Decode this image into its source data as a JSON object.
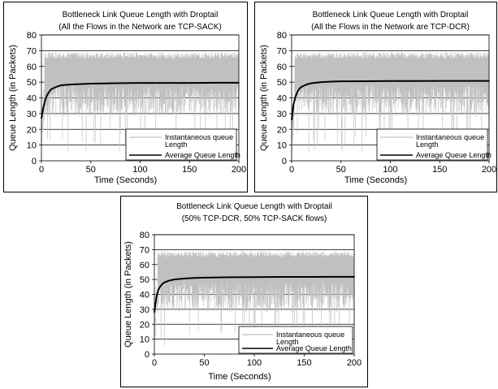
{
  "chart_data": [
    {
      "type": "line",
      "title": "Bottleneck Link Queue Length with Droptail",
      "subtitle": "(All the Flows in the Network are TCP-SACK)",
      "xlabel": "Time (Seconds)",
      "ylabel": "Queue Length (in Packets)",
      "xlim": [
        0,
        200
      ],
      "ylim": [
        0,
        80
      ],
      "xticks": [
        "0",
        "50",
        "100",
        "150",
        "200"
      ],
      "yticks": [
        "0",
        "10",
        "20",
        "30",
        "40",
        "50",
        "60",
        "70",
        "80"
      ],
      "grid": "horizontal",
      "legend_position": "bottom-right",
      "series": [
        {
          "name": "Instantaneous queue Length",
          "color": "#c0c0c0",
          "style": "dense oscillation",
          "band": [
            20,
            69
          ],
          "max": 69,
          "min": 5
        },
        {
          "name": "Average Queue Length",
          "color": "#000000",
          "x": [
            0,
            2,
            4,
            6,
            8,
            10,
            15,
            20,
            30,
            40,
            50,
            75,
            100,
            125,
            150,
            175,
            200
          ],
          "y": [
            27,
            34,
            39,
            42,
            44,
            45.5,
            47,
            48,
            48.5,
            48.8,
            49,
            49.3,
            49.5,
            49.5,
            49.5,
            49.6,
            49.6
          ]
        }
      ]
    },
    {
      "type": "line",
      "title": "Bottleneck Link Queue Length with Droptail",
      "subtitle": "(All the Flows in the Network are TCP-DCR)",
      "xlabel": "Time (Seconds)",
      "ylabel": "Queue Length (in Packets)",
      "xlim": [
        0,
        200
      ],
      "ylim": [
        0,
        80
      ],
      "xticks": [
        "0",
        "50",
        "100",
        "150",
        "200"
      ],
      "yticks": [
        "0",
        "10",
        "20",
        "30",
        "40",
        "50",
        "60",
        "70",
        "80"
      ],
      "grid": "horizontal",
      "legend_position": "bottom-right",
      "series": [
        {
          "name": "Instantaneous queue Length",
          "color": "#c0c0c0",
          "style": "dense oscillation",
          "band": [
            20,
            69
          ],
          "max": 69,
          "min": 5
        },
        {
          "name": "Average Queue Length",
          "color": "#000000",
          "x": [
            0,
            2,
            4,
            6,
            8,
            10,
            15,
            20,
            30,
            40,
            50,
            75,
            100,
            125,
            150,
            175,
            200
          ],
          "y": [
            26,
            36,
            41,
            44,
            46,
            47,
            48.5,
            49.3,
            50,
            50.3,
            50.5,
            50.6,
            50.7,
            50.7,
            50.8,
            50.8,
            50.8
          ]
        }
      ]
    },
    {
      "type": "line",
      "title": "Bottleneck Link Queue Length with Droptail",
      "subtitle": "(50% TCP-DCR,  50% TCP-SACK flows)",
      "xlabel": "Time (Seconds)",
      "ylabel": "Queue Length (in Packets)",
      "xlim": [
        0,
        200
      ],
      "ylim": [
        0,
        80
      ],
      "xticks": [
        "0",
        "50",
        "100",
        "150",
        "200"
      ],
      "yticks": [
        "0",
        "10",
        "20",
        "30",
        "40",
        "50",
        "60",
        "70",
        "80"
      ],
      "grid": "horizontal",
      "legend_position": "bottom-right",
      "series": [
        {
          "name": "Instantaneous queue Length",
          "color": "#c0c0c0",
          "style": "dense oscillation",
          "band": [
            20,
            69
          ],
          "max": 69,
          "min": 5
        },
        {
          "name": "Average Queue Length",
          "color": "#000000",
          "x": [
            0,
            2,
            4,
            6,
            8,
            10,
            15,
            20,
            30,
            40,
            50,
            75,
            100,
            125,
            150,
            175,
            200
          ],
          "y": [
            28,
            38,
            43,
            45.5,
            47,
            48,
            49.3,
            50,
            50.6,
            51,
            51.2,
            51.5,
            51.6,
            51.7,
            51.7,
            51.8,
            51.8
          ]
        }
      ]
    }
  ]
}
